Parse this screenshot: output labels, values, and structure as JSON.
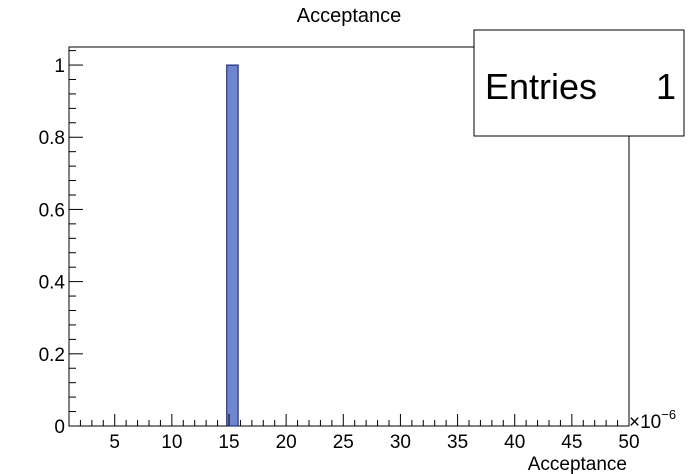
{
  "chart_data": {
    "type": "bar",
    "title": "Acceptance",
    "xlabel": "Acceptance",
    "ylabel": "",
    "x_exponent_label": "×10",
    "x_exponent_power": "−6",
    "xlim": [
      1,
      50
    ],
    "ylim": [
      0,
      1.05
    ],
    "bin_width": 1,
    "x_ticks": [
      5,
      10,
      15,
      20,
      25,
      30,
      35,
      40,
      45,
      50
    ],
    "x_tick_labels": [
      "5",
      "10",
      "15",
      "20",
      "25",
      "30",
      "35",
      "40",
      "45",
      "50"
    ],
    "y_ticks": [
      0,
      0.2,
      0.4,
      0.6,
      0.8,
      1
    ],
    "y_tick_labels": [
      "0",
      "0.2",
      "0.4",
      "0.6",
      "0.8",
      "1"
    ],
    "bins": [
      {
        "low": 14.8,
        "high": 15.8,
        "value": 1
      }
    ],
    "grid": false,
    "stats_box": {
      "label": "Entries",
      "value": "1",
      "placement": "top-right"
    },
    "colors": {
      "fill": "#6e86cf",
      "stroke": "#0a1a6e"
    }
  }
}
